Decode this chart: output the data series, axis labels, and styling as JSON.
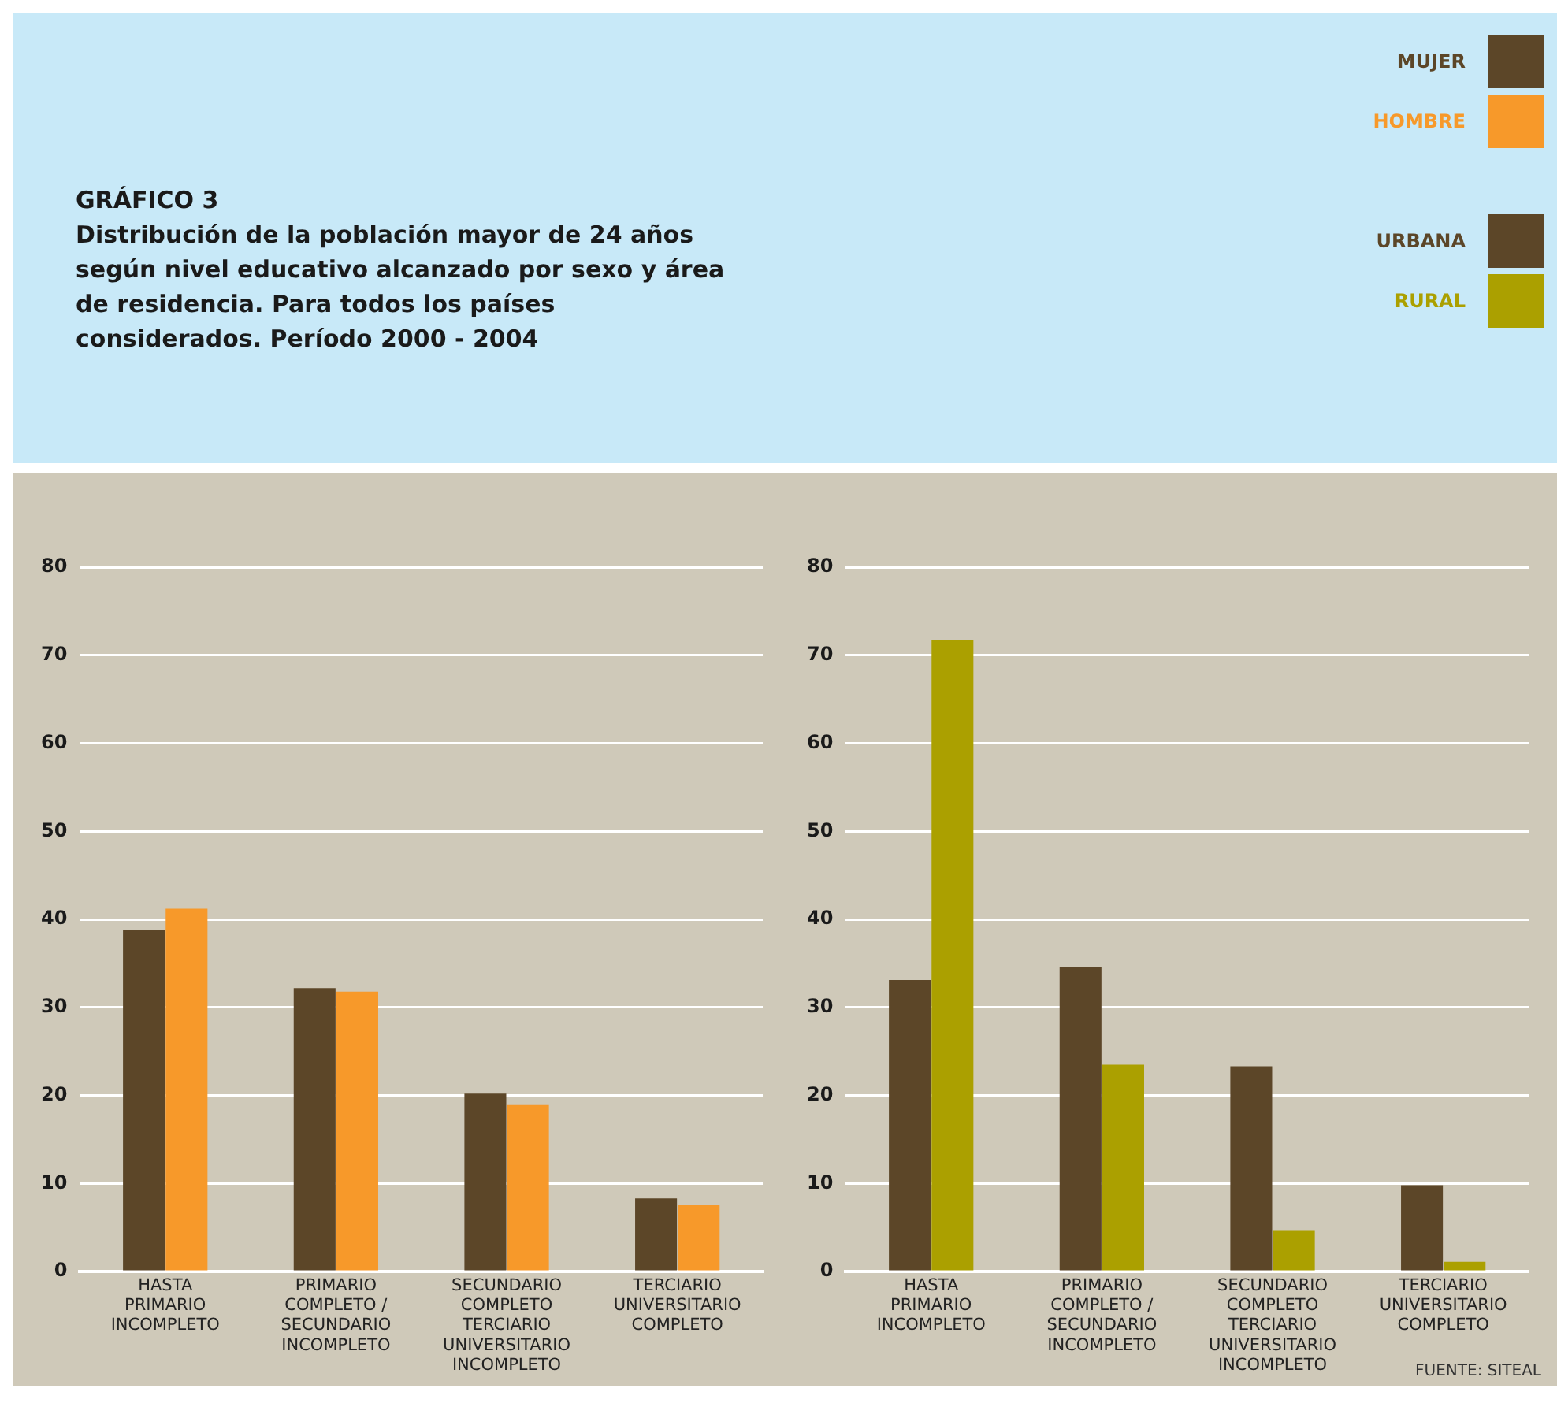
{
  "chart_data": [
    {
      "type": "bar",
      "title": "GRÁFICO 3",
      "subtitle": "Distribución de la población mayor de 24 años según nivel educativo alcanzado por sexo y área de residencia. Para todos los países considerados. Período 2000 - 2004",
      "categories": [
        "HASTA PRIMARIO INCOMPLETO",
        "PRIMARIO COMPLETO / SECUNDARIO INCOMPLETO",
        "SECUNDARIO COMPLETO TERCIARIO UNIVERSITARIO INCOMPLETO",
        "TERCIARIO UNIVERSITARIO COMPLETO"
      ],
      "series": [
        {
          "name": "MUJER",
          "color": "#5c4628",
          "values": [
            38.8,
            32.2,
            20.2,
            8.3
          ]
        },
        {
          "name": "HOMBRE",
          "color": "#f7992a",
          "values": [
            41.2,
            31.8,
            18.9,
            7.6
          ]
        }
      ],
      "ylim": [
        0,
        80
      ],
      "yticks": [
        0,
        10,
        20,
        30,
        40,
        50,
        60,
        70,
        80
      ],
      "grid": "y",
      "legend": "top right"
    },
    {
      "type": "bar",
      "categories": [
        "HASTA PRIMARIO INCOMPLETO",
        "PRIMARIO COMPLETO / SECUNDARIO INCOMPLETO",
        "SECUNDARIO COMPLETO TERCIARIO UNIVERSITARIO INCOMPLETO",
        "TERCIARIO UNIVERSITARIO COMPLETO"
      ],
      "series": [
        {
          "name": "URBANA",
          "color": "#5c4628",
          "values": [
            33.1,
            34.6,
            23.3,
            9.8
          ]
        },
        {
          "name": "RURAL",
          "color": "#aba000",
          "values": [
            71.7,
            23.5,
            4.7,
            1.1
          ]
        }
      ],
      "ylim": [
        0,
        80
      ],
      "yticks": [
        0,
        10,
        20,
        30,
        40,
        50,
        60,
        70,
        80
      ],
      "grid": "y",
      "legend": "top right",
      "annotations": [
        "FUENTE: SITEAL"
      ]
    }
  ]
}
